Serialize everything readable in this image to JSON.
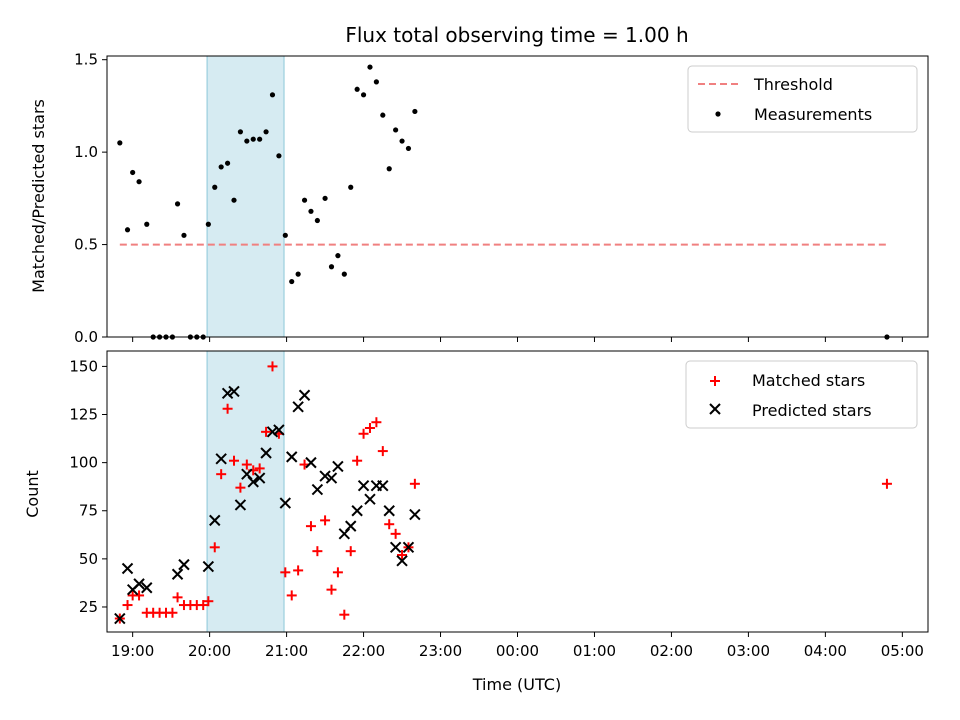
{
  "chart_data": [
    {
      "type": "scatter",
      "title": "Flux total observing time = 1.00 h",
      "xlabel": "",
      "ylabel": "Matched/Predicted stars",
      "xlim": [
        "18:40",
        "05:20"
      ],
      "ylim": [
        0,
        1.52
      ],
      "yticks": [
        0.0,
        0.5,
        1.0,
        1.5
      ],
      "ytick_labels": [
        "0.0",
        "0.5",
        "1.0",
        "1.5"
      ],
      "highlight_span": [
        "19:58",
        "20:58"
      ],
      "highlight_color": "#add8e6",
      "legend_position": "top-right",
      "threshold": {
        "name": "Threshold",
        "y": 0.5,
        "x_start": "18:50",
        "x_end": "04:48",
        "color": "#f08080",
        "style": "dashed"
      },
      "series": [
        {
          "name": "Measurements",
          "marker": "dot",
          "color": "#000000",
          "points": [
            [
              "18:50",
              1.05
            ],
            [
              "18:56",
              0.58
            ],
            [
              "19:00",
              0.89
            ],
            [
              "19:05",
              0.84
            ],
            [
              "19:11",
              0.61
            ],
            [
              "19:16",
              0.0
            ],
            [
              "19:21",
              0.0
            ],
            [
              "19:26",
              0.0
            ],
            [
              "19:31",
              0.0
            ],
            [
              "19:35",
              0.72
            ],
            [
              "19:40",
              0.55
            ],
            [
              "19:45",
              0.0
            ],
            [
              "19:50",
              0.0
            ],
            [
              "19:55",
              0.0
            ],
            [
              "19:59",
              0.61
            ],
            [
              "20:04",
              0.81
            ],
            [
              "20:09",
              0.92
            ],
            [
              "20:14",
              0.94
            ],
            [
              "20:19",
              0.74
            ],
            [
              "20:24",
              1.11
            ],
            [
              "20:29",
              1.06
            ],
            [
              "20:34",
              1.07
            ],
            [
              "20:39",
              1.07
            ],
            [
              "20:44",
              1.11
            ],
            [
              "20:49",
              1.31
            ],
            [
              "20:54",
              0.98
            ],
            [
              "20:59",
              0.55
            ],
            [
              "21:04",
              0.3
            ],
            [
              "21:09",
              0.34
            ],
            [
              "21:14",
              0.74
            ],
            [
              "21:19",
              0.68
            ],
            [
              "21:24",
              0.63
            ],
            [
              "21:30",
              0.75
            ],
            [
              "21:35",
              0.38
            ],
            [
              "21:40",
              0.44
            ],
            [
              "21:45",
              0.34
            ],
            [
              "21:50",
              0.81
            ],
            [
              "21:55",
              1.34
            ],
            [
              "22:00",
              1.31
            ],
            [
              "22:05",
              1.46
            ],
            [
              "22:10",
              1.38
            ],
            [
              "22:15",
              1.2
            ],
            [
              "22:20",
              0.91
            ],
            [
              "22:25",
              1.12
            ],
            [
              "22:30",
              1.06
            ],
            [
              "22:35",
              1.02
            ],
            [
              "22:40",
              1.22
            ],
            [
              "04:48",
              0.0
            ]
          ]
        }
      ]
    },
    {
      "type": "scatter",
      "title": "",
      "xlabel": "Time (UTC)",
      "ylabel": "Count",
      "xlim": [
        "18:40",
        "05:20"
      ],
      "ylim": [
        12,
        158
      ],
      "yticks": [
        25,
        50,
        75,
        100,
        125,
        150
      ],
      "ytick_labels": [
        "25",
        "50",
        "75",
        "100",
        "125",
        "150"
      ],
      "xticks": [
        "19:00",
        "20:00",
        "21:00",
        "22:00",
        "23:00",
        "00:00",
        "01:00",
        "02:00",
        "03:00",
        "04:00",
        "05:00"
      ],
      "highlight_span": [
        "19:58",
        "20:58"
      ],
      "highlight_color": "#add8e6",
      "legend_position": "top-right",
      "series": [
        {
          "name": "Matched stars",
          "marker": "plus",
          "color": "#ff0000",
          "points": [
            [
              "18:50",
              19
            ],
            [
              "18:56",
              26
            ],
            [
              "19:00",
              31
            ],
            [
              "19:05",
              31
            ],
            [
              "19:11",
              22
            ],
            [
              "19:16",
              22
            ],
            [
              "19:21",
              22
            ],
            [
              "19:26",
              22
            ],
            [
              "19:31",
              22
            ],
            [
              "19:35",
              30
            ],
            [
              "19:40",
              26
            ],
            [
              "19:45",
              26
            ],
            [
              "19:50",
              26
            ],
            [
              "19:55",
              26
            ],
            [
              "19:59",
              28
            ],
            [
              "20:04",
              56
            ],
            [
              "20:09",
              94
            ],
            [
              "20:14",
              128
            ],
            [
              "20:19",
              101
            ],
            [
              "20:24",
              87
            ],
            [
              "20:29",
              99
            ],
            [
              "20:34",
              96
            ],
            [
              "20:39",
              97
            ],
            [
              "20:44",
              116
            ],
            [
              "20:49",
              150
            ],
            [
              "20:54",
              115
            ],
            [
              "20:59",
              43
            ],
            [
              "21:04",
              31
            ],
            [
              "21:09",
              44
            ],
            [
              "21:14",
              99
            ],
            [
              "21:19",
              67
            ],
            [
              "21:24",
              54
            ],
            [
              "21:30",
              70
            ],
            [
              "21:35",
              34
            ],
            [
              "21:40",
              43
            ],
            [
              "21:45",
              21
            ],
            [
              "21:50",
              54
            ],
            [
              "21:55",
              101
            ],
            [
              "22:00",
              115
            ],
            [
              "22:05",
              118
            ],
            [
              "22:10",
              121
            ],
            [
              "22:15",
              106
            ],
            [
              "22:20",
              68
            ],
            [
              "22:25",
              63
            ],
            [
              "22:30",
              52
            ],
            [
              "22:35",
              56
            ],
            [
              "22:40",
              89
            ],
            [
              "04:48",
              89
            ]
          ]
        },
        {
          "name": "Predicted stars",
          "marker": "x",
          "color": "#000000",
          "points": [
            [
              "18:50",
              19
            ],
            [
              "18:56",
              45
            ],
            [
              "19:00",
              34
            ],
            [
              "19:05",
              37
            ],
            [
              "19:11",
              35
            ],
            [
              "19:35",
              42
            ],
            [
              "19:40",
              47
            ],
            [
              "19:59",
              46
            ],
            [
              "20:04",
              70
            ],
            [
              "20:09",
              102
            ],
            [
              "20:14",
              136
            ],
            [
              "20:19",
              137
            ],
            [
              "20:24",
              78
            ],
            [
              "20:29",
              94
            ],
            [
              "20:34",
              90
            ],
            [
              "20:39",
              92
            ],
            [
              "20:44",
              105
            ],
            [
              "20:49",
              116
            ],
            [
              "20:54",
              117
            ],
            [
              "20:59",
              79
            ],
            [
              "21:04",
              103
            ],
            [
              "21:09",
              129
            ],
            [
              "21:14",
              135
            ],
            [
              "21:19",
              100
            ],
            [
              "21:24",
              86
            ],
            [
              "21:30",
              93
            ],
            [
              "21:35",
              92
            ],
            [
              "21:40",
              98
            ],
            [
              "21:45",
              63
            ],
            [
              "21:50",
              67
            ],
            [
              "21:55",
              75
            ],
            [
              "22:00",
              88
            ],
            [
              "22:05",
              81
            ],
            [
              "22:10",
              88
            ],
            [
              "22:15",
              88
            ],
            [
              "22:20",
              75
            ],
            [
              "22:25",
              56
            ],
            [
              "22:30",
              49
            ],
            [
              "22:35",
              56
            ],
            [
              "22:40",
              73
            ]
          ]
        }
      ]
    }
  ]
}
